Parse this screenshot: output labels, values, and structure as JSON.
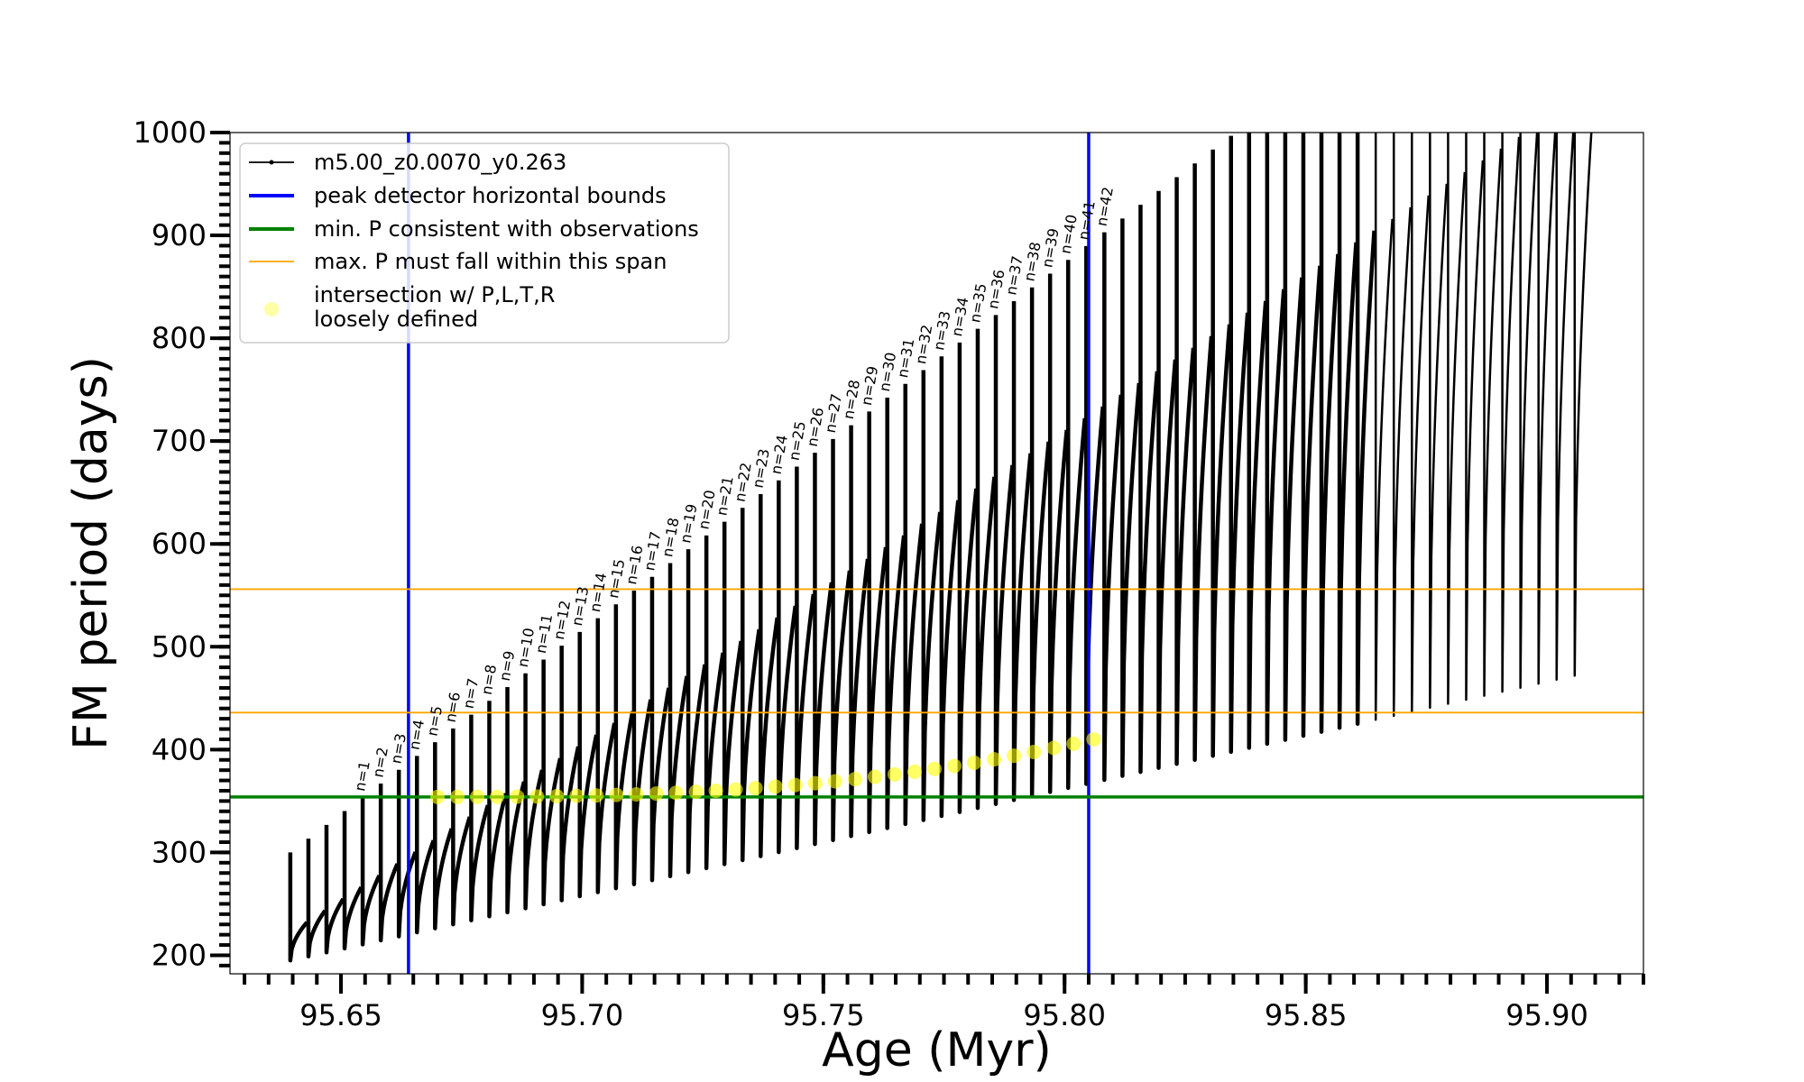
{
  "chart_data": {
    "type": "line",
    "xlabel": "Age (Myr)",
    "ylabel": "FM period (days)",
    "xlim": [
      95.627,
      95.92
    ],
    "ylim": [
      182,
      1000
    ],
    "xticks": [
      95.65,
      95.7,
      95.75,
      95.8,
      95.85,
      95.9
    ],
    "xtick_labels": [
      "95.65",
      "95.70",
      "95.75",
      "95.80",
      "95.85",
      "95.90"
    ],
    "yticks": [
      200,
      300,
      400,
      500,
      600,
      700,
      800,
      900,
      1000
    ],
    "ytick_labels": [
      "200",
      "300",
      "400",
      "500",
      "600",
      "700",
      "800",
      "900",
      "1000"
    ],
    "minor_tick_step_x": 0.005,
    "minor_tick_step_y": 10,
    "grid": false,
    "legend_position": "top-left",
    "legend": [
      {
        "label": "m5.00_z0.0070_y0.263",
        "kind": "line-marker",
        "color": "#000000"
      },
      {
        "label": "peak detector horizontal bounds",
        "kind": "line",
        "color": "#0000ff"
      },
      {
        "label": "min. P consistent with observations",
        "kind": "line",
        "color": "#008000"
      },
      {
        "label": "max. P must fall within this span",
        "kind": "line",
        "color": "#ffa500"
      },
      {
        "label_lines": [
          "intersection w/ P,L,T,R",
          "loosely defined"
        ],
        "kind": "marker",
        "color": "#ffff00"
      }
    ],
    "series": [
      {
        "name": "m5.00_z0.0070_y0.263",
        "color": "#000000",
        "pulse_count": 72,
        "first_pulse_age": 95.6395,
        "pulse_spacing": 0.00375,
        "pulse_labels": [
          "n=1",
          "n=2",
          "n=3",
          "n=4",
          "n=5",
          "n=6",
          "n=7",
          "n=8",
          "n=9",
          "n=10",
          "n=11",
          "n=12",
          "n=13",
          "n=14",
          "n=15",
          "n=16",
          "n=17",
          "n=18",
          "n=19",
          "n=20",
          "n=21",
          "n=22",
          "n=23",
          "n=24",
          "n=25",
          "n=26",
          "n=27",
          "n=28",
          "n=29",
          "n=30",
          "n=31",
          "n=32",
          "n=33",
          "n=34",
          "n=35",
          "n=36",
          "n=37",
          "n=38",
          "n=39",
          "n=40",
          "n=41",
          "n=42"
        ],
        "first_labeled_pulse": 4,
        "label_last_pulse": 45,
        "envelope_min_start": 195,
        "envelope_min_slope": 3.9,
        "envelope_max_start": 232,
        "envelope_max_slope": 11.4,
        "spike_top_start": 300,
        "spike_top_slope": 13.4
      }
    ],
    "reference_lines": [
      {
        "name": "peak detector horizontal bounds",
        "orientation": "vertical",
        "values": [
          95.664,
          95.805
        ],
        "color": "#0000ff"
      },
      {
        "name": "min. P consistent with observations",
        "orientation": "horizontal",
        "values": [
          354
        ],
        "color": "#008000"
      },
      {
        "name": "max. P must fall within this span",
        "orientation": "horizontal",
        "values": [
          436,
          556
        ],
        "color": "#ffa500"
      }
    ],
    "intersection_points": {
      "name": "intersection w/ P,L,T,R loosely defined",
      "color": "#ffff00",
      "age_start": 95.67,
      "age_end": 95.806,
      "period_start": 354,
      "period_end": 410
    }
  }
}
